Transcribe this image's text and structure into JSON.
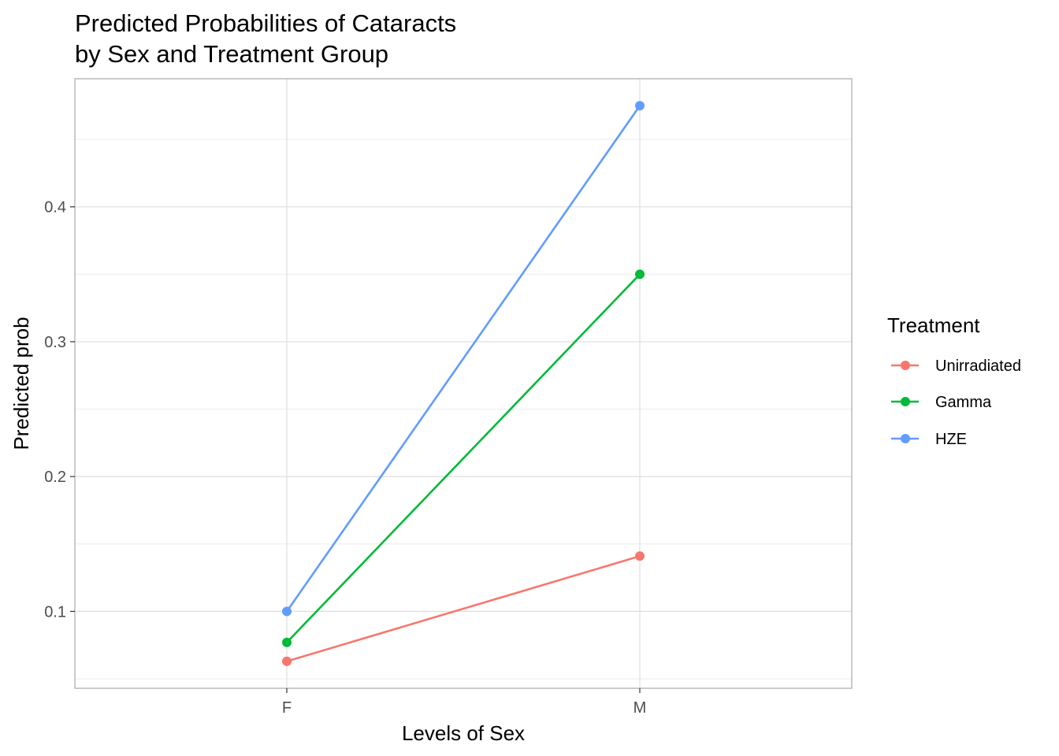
{
  "chart_data": {
    "type": "line",
    "title_lines": [
      "Predicted Probabilities of Cataracts",
      "by Sex and Treatment Group"
    ],
    "xlabel": "Levels of Sex",
    "ylabel": "Predicted prob",
    "categories": [
      "F",
      "M"
    ],
    "ylim": [
      0.043,
      0.495
    ],
    "yticks": [
      0.1,
      0.2,
      0.3,
      0.4
    ],
    "ytick_labels": [
      "0.1",
      "0.2",
      "0.3",
      "0.4"
    ],
    "grid": true,
    "legend": {
      "title": "Treatment",
      "placement": "right"
    },
    "series": [
      {
        "name": "Unirradiated",
        "color": "#F8766D",
        "values": [
          0.063,
          0.141
        ]
      },
      {
        "name": "Gamma",
        "color": "#00BA38",
        "values": [
          0.077,
          0.35
        ]
      },
      {
        "name": "HZE",
        "color": "#619CFF",
        "values": [
          0.1,
          0.475
        ]
      }
    ]
  }
}
